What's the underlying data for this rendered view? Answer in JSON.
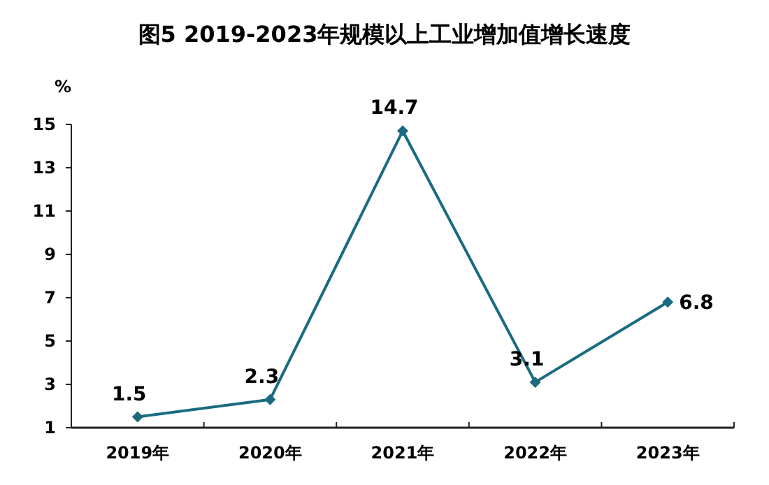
{
  "chart_data": {
    "type": "line",
    "title": "图5  2019-2023年规模以上工业增加值增长速度",
    "ylabel": "%",
    "categories": [
      "2019年",
      "2020年",
      "2021年",
      "2022年",
      "2023年"
    ],
    "series": [
      {
        "color": "#1a6b80",
        "values": [
          1.5,
          2.3,
          14.7,
          3.1,
          6.8
        ]
      }
    ],
    "ylim": [
      1,
      15
    ],
    "yticks": [
      1,
      3,
      5,
      7,
      9,
      11,
      13,
      15
    ],
    "data_labels": true,
    "marker": "diamond",
    "line_style": "solid"
  }
}
